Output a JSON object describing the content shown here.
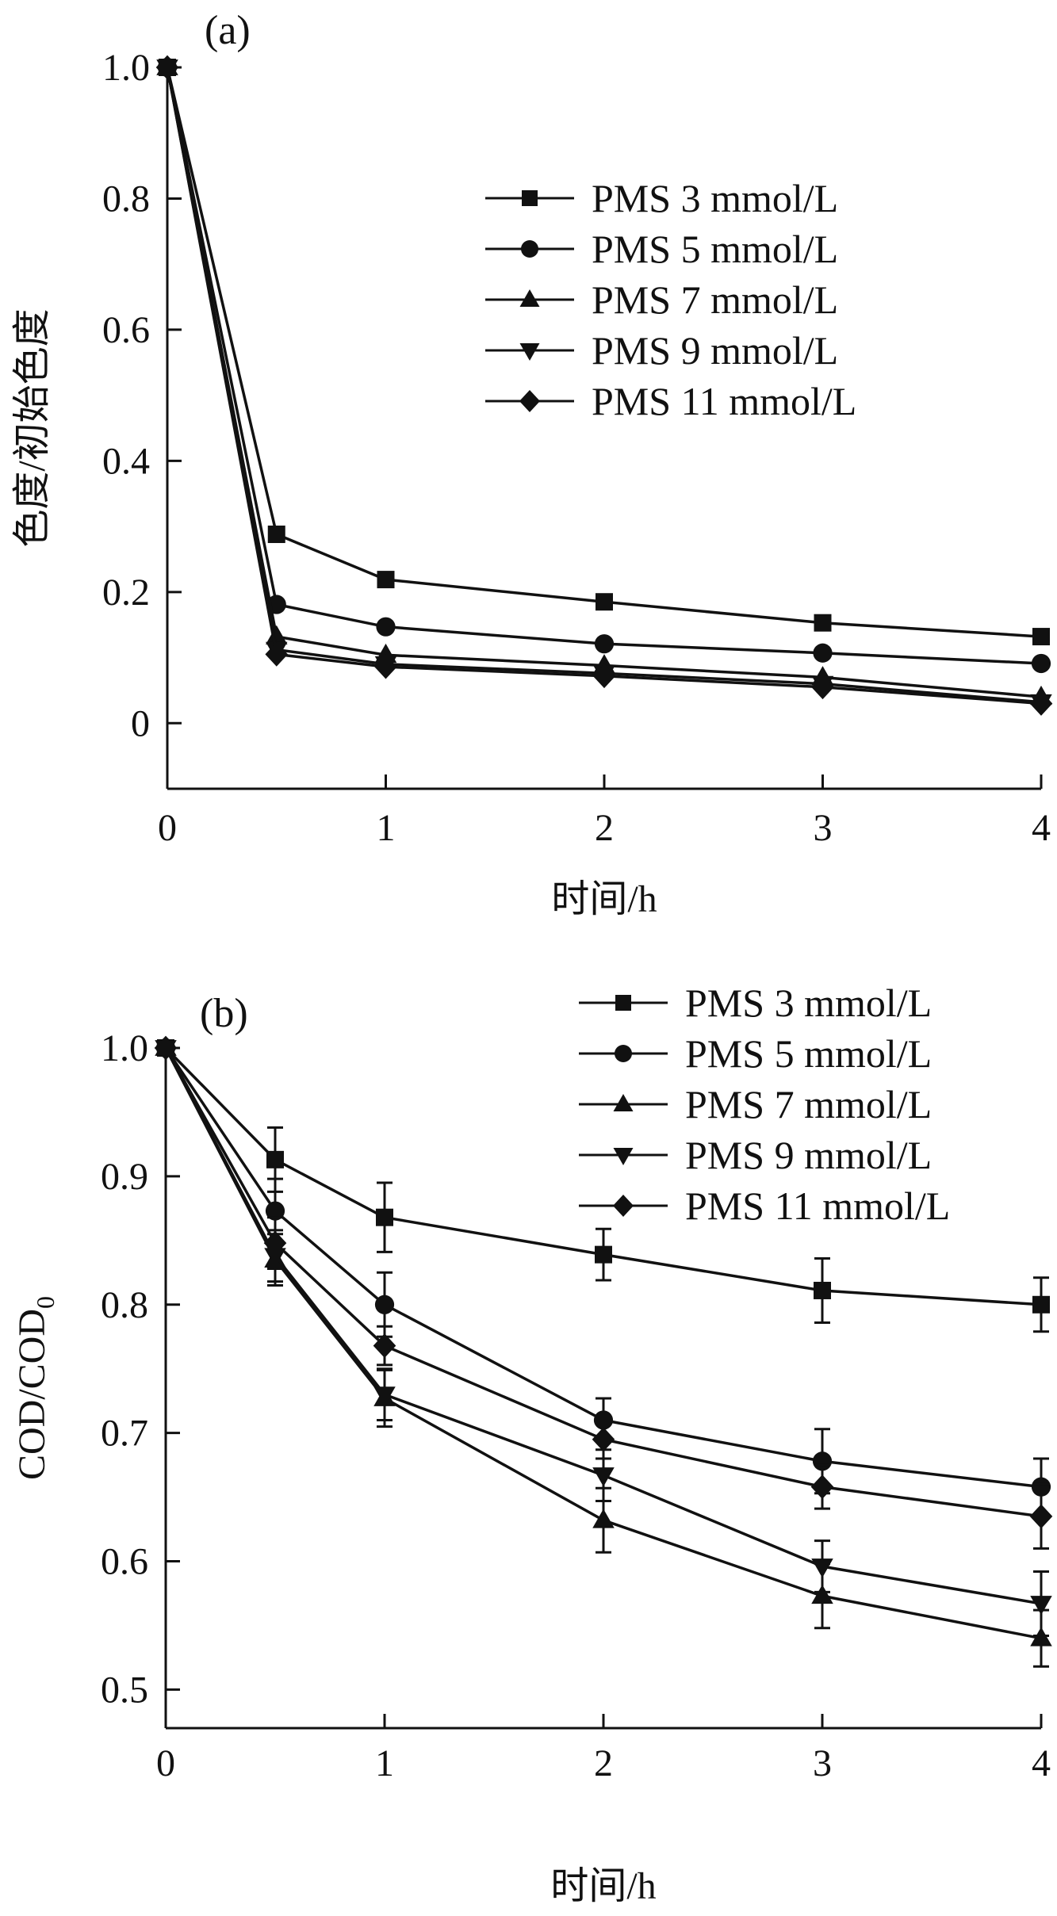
{
  "chart_data": [
    {
      "type": "line",
      "panel_label": "(a)",
      "title": "",
      "xlabel": "时间/h",
      "ylabel": "色度/初始色度",
      "xlim": [
        0,
        4
      ],
      "ylim": [
        -0.1,
        1.0
      ],
      "x_ticks": [
        0,
        1,
        2,
        3,
        4
      ],
      "x_tick_labels": [
        "0",
        "1",
        "2",
        "3",
        "4"
      ],
      "y_ticks": [
        0,
        0.2,
        0.4,
        0.6,
        0.8,
        1.0
      ],
      "y_tick_labels": [
        "0",
        "0.2",
        "0.4",
        "0.6",
        "0.8",
        "1.0"
      ],
      "grid": false,
      "legend_position": "top-right",
      "x": [
        0,
        0.5,
        1,
        2,
        3,
        4
      ],
      "series": [
        {
          "name": "PMS 3 mmol/L",
          "marker": "square",
          "values": [
            1.0,
            0.288,
            0.219,
            0.185,
            0.153,
            0.132
          ]
        },
        {
          "name": "PMS 5 mmol/L",
          "marker": "circle",
          "values": [
            1.0,
            0.181,
            0.147,
            0.121,
            0.107,
            0.091
          ]
        },
        {
          "name": "PMS 7 mmol/L",
          "marker": "triangle-up",
          "values": [
            1.0,
            0.132,
            0.104,
            0.088,
            0.07,
            0.04
          ]
        },
        {
          "name": "PMS 9 mmol/L",
          "marker": "triangle-down",
          "values": [
            1.0,
            0.112,
            0.09,
            0.076,
            0.06,
            0.032
          ]
        },
        {
          "name": "PMS 11 mmol/L",
          "marker": "diamond",
          "values": [
            1.0,
            0.105,
            0.086,
            0.072,
            0.055,
            0.03
          ]
        }
      ]
    },
    {
      "type": "line",
      "panel_label": "(b)",
      "title": "",
      "xlabel": "时间/h",
      "ylabel": "COD/COD",
      "ylabel_subscript": "0",
      "xlim": [
        0,
        4
      ],
      "ylim": [
        0.47,
        1.0
      ],
      "x_ticks": [
        0,
        1,
        2,
        3,
        4
      ],
      "x_tick_labels": [
        "0",
        "1",
        "2",
        "3",
        "4"
      ],
      "y_ticks": [
        0.5,
        0.6,
        0.7,
        0.8,
        0.9,
        1.0
      ],
      "y_tick_labels": [
        "0.5",
        "0.6",
        "0.7",
        "0.8",
        "0.9",
        "1.0"
      ],
      "grid": false,
      "legend_position": "top-right",
      "x": [
        0,
        0.5,
        1,
        2,
        3,
        4
      ],
      "series": [
        {
          "name": "PMS 3 mmol/L",
          "marker": "square",
          "values": [
            1.0,
            0.913,
            0.868,
            0.839,
            0.811,
            0.8
          ],
          "errors": [
            0,
            0.025,
            0.027,
            0.02,
            0.025,
            0.021
          ]
        },
        {
          "name": "PMS 5 mmol/L",
          "marker": "circle",
          "values": [
            1.0,
            0.873,
            0.8,
            0.71,
            0.678,
            0.658
          ],
          "errors": [
            0,
            0.025,
            0.025,
            0.017,
            0.025,
            0.022
          ]
        },
        {
          "name": "PMS 7 mmol/L",
          "marker": "triangle-up",
          "values": [
            1.0,
            0.835,
            0.727,
            0.632,
            0.573,
            0.54
          ],
          "errors": [
            0,
            0.02,
            0.022,
            0.025,
            0.025,
            0.022
          ]
        },
        {
          "name": "PMS 9 mmol/L",
          "marker": "triangle-down",
          "values": [
            1.0,
            0.838,
            0.73,
            0.667,
            0.596,
            0.567
          ],
          "errors": [
            0,
            0.02,
            0.02,
            0.02,
            0.02,
            0.025
          ]
        },
        {
          "name": "PMS 11 mmol/L",
          "marker": "diamond",
          "values": [
            1.0,
            0.848,
            0.768,
            0.695,
            0.658,
            0.635
          ],
          "errors": [
            0,
            0.02,
            0.015,
            0.015,
            0.017,
            0.025
          ]
        }
      ]
    }
  ]
}
